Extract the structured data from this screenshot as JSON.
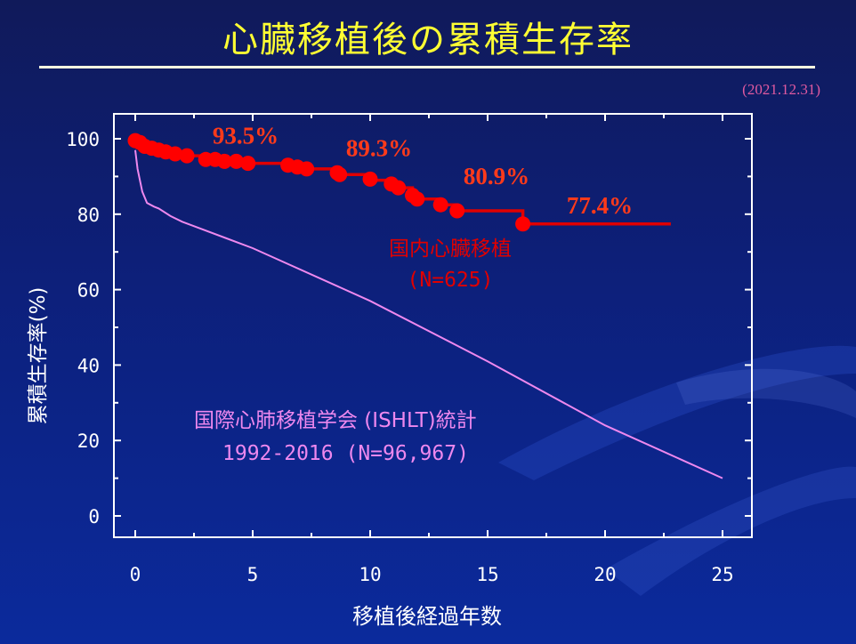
{
  "title": "心臓移植後の累積生存率",
  "date_note": "(2021.12.31)",
  "chart_data": {
    "type": "line",
    "xlabel": "移植後経過年数",
    "ylabel": "累積生存率(%)",
    "xlim": [
      0,
      25
    ],
    "ylim": [
      0,
      100
    ],
    "xticks": [
      0,
      5,
      10,
      15,
      20,
      25
    ],
    "yticks": [
      0,
      20,
      40,
      60,
      80,
      100
    ],
    "grid": false,
    "series": [
      {
        "name": "国内心臓移植",
        "label_lines": [
          "国内心臓移植",
          "(N=625)"
        ],
        "color": "#e00000",
        "step": true,
        "x": [
          0,
          0.2,
          0.4,
          0.7,
          1.0,
          1.3,
          1.7,
          2.2,
          3.0,
          3.4,
          3.8,
          4.3,
          4.8,
          5.0,
          6.5,
          6.9,
          7.3,
          8.6,
          8.7,
          10.0,
          10.2,
          10.9,
          11.2,
          11.8,
          12.0,
          13.0,
          13.7,
          16.5,
          16.6,
          22.8
        ],
        "y": [
          100,
          99,
          98,
          97.5,
          97,
          96.5,
          96,
          95.5,
          94.5,
          94.5,
          94,
          94,
          93.5,
          93.5,
          93,
          92.5,
          92,
          91,
          90.5,
          89.3,
          89,
          88,
          87,
          85,
          84,
          82.5,
          80.9,
          77.4,
          77.4,
          77.4
        ],
        "markers_x": [
          0,
          0.2,
          0.4,
          0.7,
          1.0,
          1.3,
          1.7,
          2.2,
          3.0,
          3.4,
          3.8,
          4.3,
          4.8,
          6.5,
          6.9,
          7.3,
          8.6,
          8.7,
          10.0,
          10.9,
          11.2,
          11.8,
          12.0,
          13.0,
          13.7,
          16.5
        ],
        "markers_y": [
          99.5,
          99,
          98,
          97.5,
          97,
          96.5,
          96,
          95.5,
          94.5,
          94.5,
          94,
          94,
          93.5,
          93,
          92.5,
          92,
          91,
          90.5,
          89.3,
          88,
          87,
          85,
          84,
          82.5,
          80.9,
          77.4
        ]
      },
      {
        "name": "国際心肺移植学会(ISHLT)統計",
        "label_lines": [
          "国際心肺移植学会 (ISHLT)統計",
          "1992-2016 (N=96,967)"
        ],
        "color": "#ee88ee",
        "x": [
          0,
          0.1,
          0.3,
          0.5,
          0.8,
          1.0,
          1.5,
          2.0,
          5.0,
          10.0,
          15.0,
          20.0,
          25.0
        ],
        "y": [
          97,
          92,
          86,
          83,
          82,
          81.5,
          79.5,
          78,
          71,
          57,
          41,
          24,
          10
        ]
      }
    ],
    "annotations": [
      {
        "text": "93.5%",
        "x": 5,
        "y": 93.5
      },
      {
        "text": "89.3%",
        "x": 10,
        "y": 89.3
      },
      {
        "text": "80.9%",
        "x": 15,
        "y": 80.9
      },
      {
        "text": "77.4%",
        "x": 20,
        "y": 77.4
      }
    ]
  }
}
